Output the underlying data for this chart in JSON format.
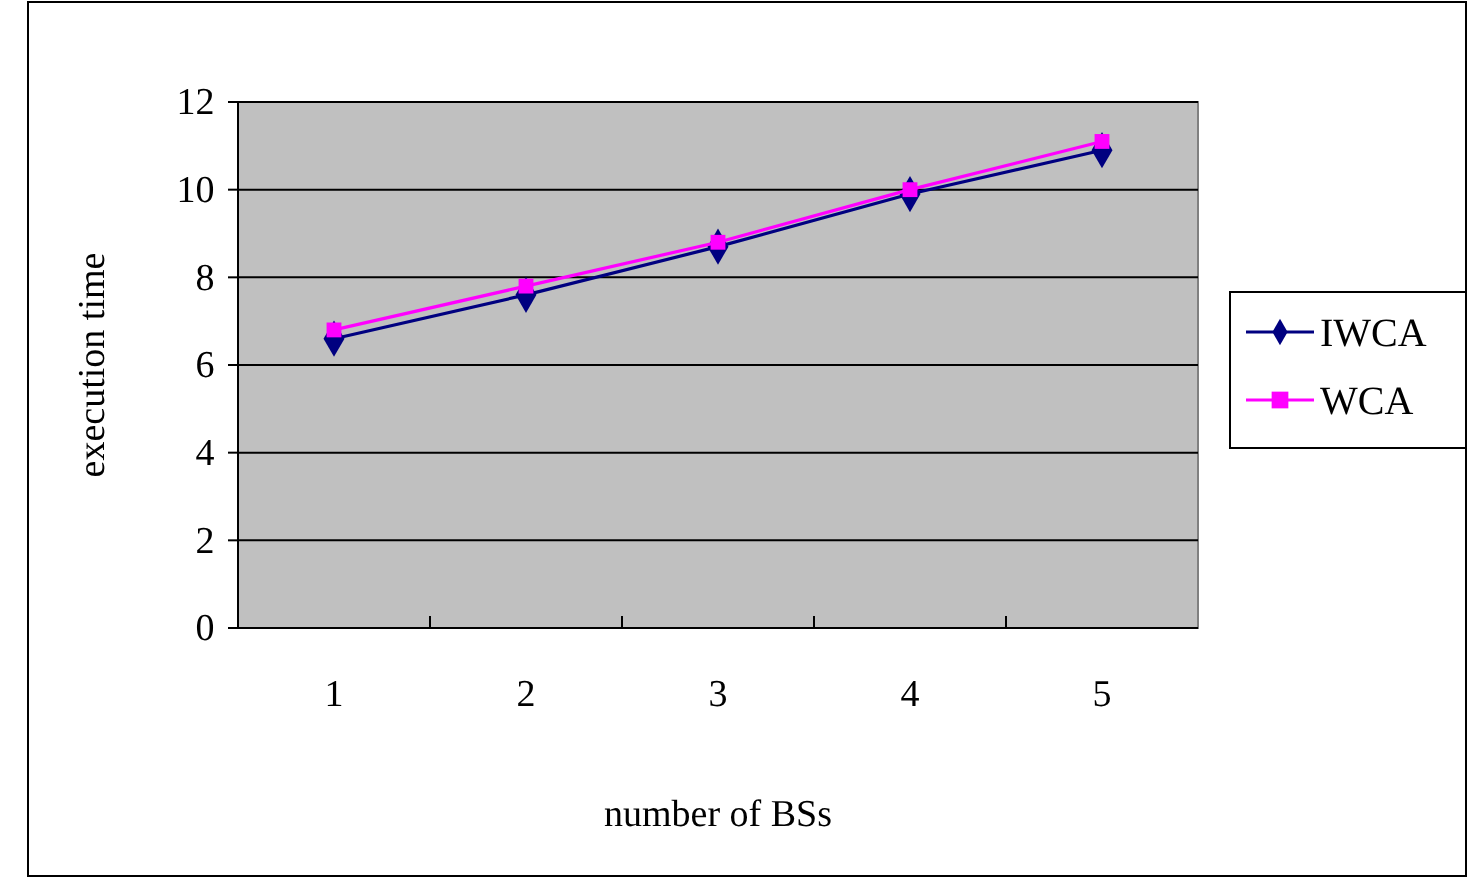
{
  "chart_data": {
    "type": "line",
    "xlabel": "number of BSs",
    "ylabel": "execution time",
    "categories": [
      "1",
      "2",
      "3",
      "4",
      "5"
    ],
    "series": [
      {
        "name": "IWCA",
        "color": "#000080",
        "values": [
          6.6,
          7.6,
          8.7,
          9.9,
          10.9
        ],
        "marker": "diamond"
      },
      {
        "name": "WCA",
        "color": "#ff00ff",
        "values": [
          6.8,
          7.8,
          8.8,
          10.0,
          11.1
        ],
        "marker": "square"
      }
    ],
    "ylim": [
      0,
      12
    ],
    "yticks": [
      0,
      2,
      4,
      6,
      8,
      10,
      12
    ],
    "grid": "y",
    "legend": "right"
  }
}
